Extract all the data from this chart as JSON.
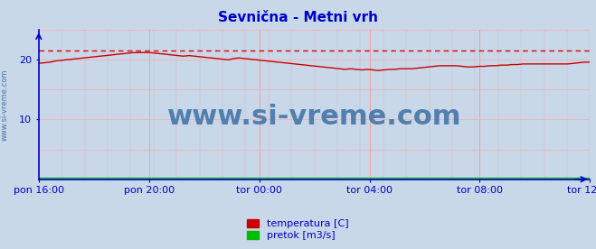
{
  "title": "Sevnična - Metni vrh",
  "title_color": "#0000cc",
  "title_fontsize": 11,
  "bg_color": "#c8d8e8",
  "plot_bg_color": "#c8d8e8",
  "border_color": "#0000cc",
  "grid_color_v": "#ff8888",
  "grid_color_h": "#ffaaaa",
  "x_tick_labels": [
    "pon 16:00",
    "pon 20:00",
    "tor 00:00",
    "tor 04:00",
    "tor 08:00",
    "tor 12:00"
  ],
  "x_tick_positions": [
    0.0,
    0.2,
    0.4,
    0.6,
    0.8,
    1.0
  ],
  "y_ticks": [
    10,
    20
  ],
  "ylim": [
    0,
    25
  ],
  "xlim": [
    0.0,
    1.0
  ],
  "max_line_y": 21.6,
  "max_line_color": "#dd0000",
  "watermark_text": "www.si-vreme.com",
  "watermark_color": "#4477aa",
  "watermark_fontsize": 22,
  "side_text": "www.si-vreme.com",
  "side_text_color": "#4477aa",
  "side_text_fontsize": 6,
  "legend_items": [
    {
      "label": "temperatura [C]",
      "color": "#cc0000"
    },
    {
      "label": "pretok [m3/s]",
      "color": "#00bb00"
    }
  ],
  "temp_profile": [
    19.4,
    19.5,
    19.6,
    19.8,
    19.9,
    20.0,
    20.1,
    20.2,
    20.3,
    20.4,
    20.5,
    20.6,
    20.7,
    20.8,
    20.9,
    21.0,
    21.1,
    21.2,
    21.2,
    21.2,
    21.2,
    21.1,
    21.0,
    20.9,
    20.8,
    20.7,
    20.6,
    20.7,
    20.6,
    20.5,
    20.4,
    20.3,
    20.2,
    20.1,
    20.0,
    20.2,
    20.3,
    20.2,
    20.1,
    20.0,
    19.9,
    19.8,
    19.7,
    19.6,
    19.5,
    19.4,
    19.3,
    19.2,
    19.1,
    19.0,
    18.9,
    18.8,
    18.7,
    18.6,
    18.5,
    18.4,
    18.5,
    18.4,
    18.3,
    18.4,
    18.3,
    18.2,
    18.3,
    18.4,
    18.4,
    18.5,
    18.5,
    18.5,
    18.6,
    18.7,
    18.8,
    18.9,
    19.0,
    19.0,
    19.0,
    19.0,
    18.9,
    18.8,
    18.8,
    18.9,
    18.9,
    19.0,
    19.0,
    19.1,
    19.1,
    19.2,
    19.2,
    19.3,
    19.3,
    19.3,
    19.3,
    19.3,
    19.3,
    19.3,
    19.3,
    19.3,
    19.4,
    19.5,
    19.6,
    19.6
  ],
  "pretok_profile": [
    0.3,
    0.3,
    0.3,
    0.3,
    0.3,
    0.3,
    0.3,
    0.3,
    0.3,
    0.3,
    0.3,
    0.3,
    0.3,
    0.3,
    0.3,
    0.3,
    0.3,
    0.3,
    0.3,
    0.3,
    0.3,
    0.3,
    0.3,
    0.3,
    0.3,
    0.3,
    0.3,
    0.3,
    0.3,
    0.3,
    0.3,
    0.3,
    0.3,
    0.3,
    0.3,
    0.3,
    0.3,
    0.3,
    0.3,
    0.3,
    0.3,
    0.3,
    0.3,
    0.3,
    0.3,
    0.3,
    0.3,
    0.3,
    0.3,
    0.3,
    0.3,
    0.3,
    0.3,
    0.3,
    0.3,
    0.3,
    0.3,
    0.3,
    0.3,
    0.3,
    0.3,
    0.3,
    0.3,
    0.3,
    0.3,
    0.3,
    0.3,
    0.3,
    0.3,
    0.3,
    0.3,
    0.3,
    0.3,
    0.3,
    0.3,
    0.3,
    0.3,
    0.3,
    0.3,
    0.3,
    0.3,
    0.3,
    0.3,
    0.3,
    0.3,
    0.3,
    0.3,
    0.3,
    0.3,
    0.3,
    0.3,
    0.3,
    0.3,
    0.3,
    0.3,
    0.3,
    0.3,
    0.3,
    0.3,
    0.3
  ]
}
